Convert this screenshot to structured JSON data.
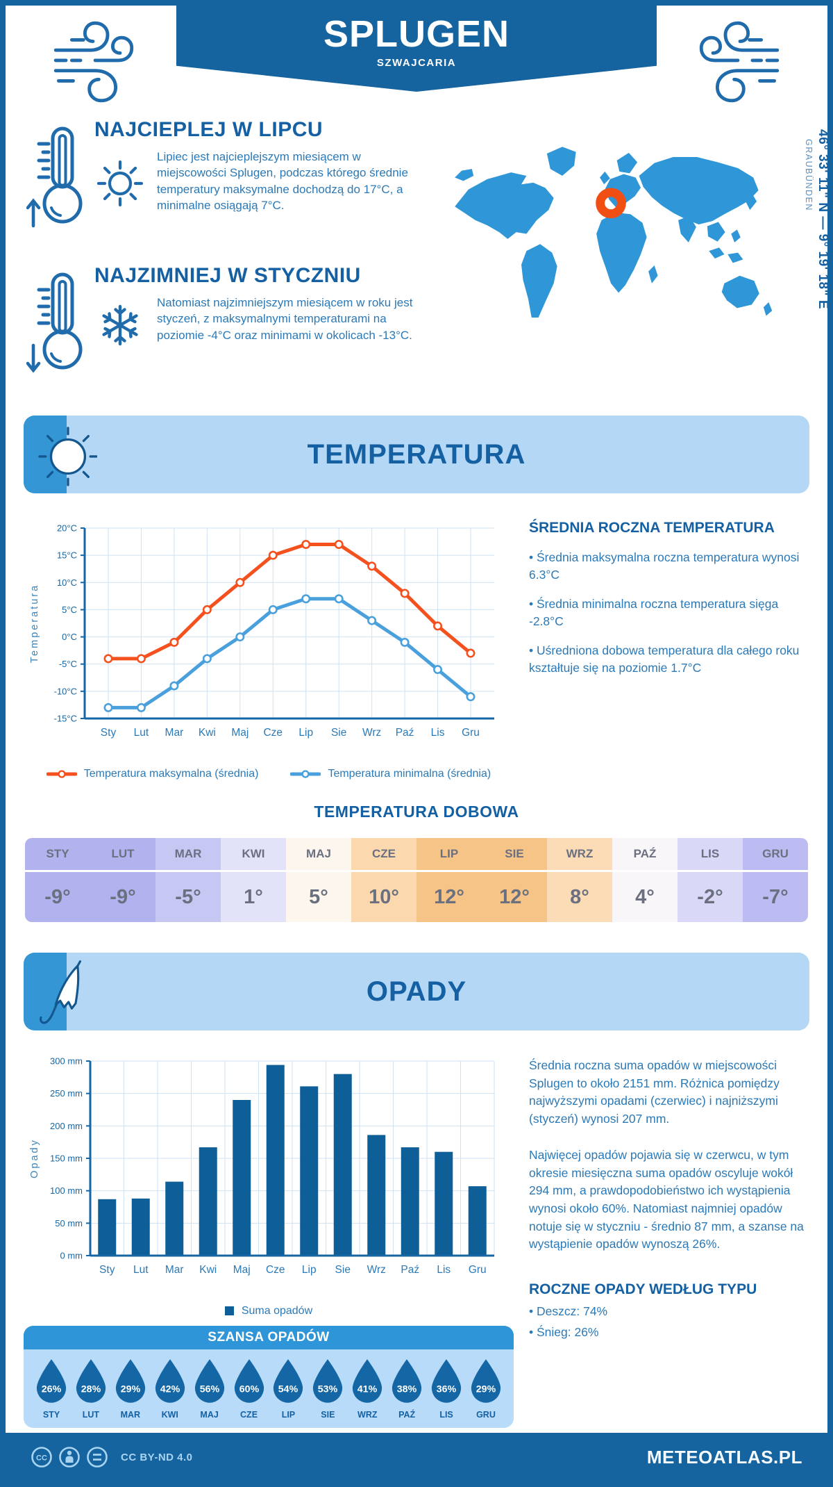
{
  "header": {
    "title": "SPLUGEN",
    "subtitle": "SZWAJCARIA"
  },
  "intro": {
    "warm": {
      "heading": "NAJCIEPLEJ W LIPCU",
      "text": "Lipiec jest najcieplejszym miesiącem w miejscowości Splugen, podczas którego średnie temperatury maksymalne dochodzą do 17°C, a minimalne osiągają 7°C."
    },
    "cold": {
      "heading": "NAJZIMNIEJ W STYCZNIU",
      "text": "Natomiast najzimniejszym miesiącem w roku jest styczeń, z maksymalnymi temperaturami na poziomie -4°C oraz minimami w okolicach -13°C."
    },
    "map": {
      "coordinates": "46° 33' 11\" N — 9° 19' 18\" E",
      "region": "GRAUBÜNDEN",
      "marker_color": "#f04e12",
      "map_color": "#2f96d8"
    }
  },
  "temperature_section": {
    "title": "TEMPERATURA",
    "summary": {
      "heading": "ŚREDNIA ROCZNA TEMPERATURA",
      "bullets": [
        "• Średnia maksymalna roczna temperatura wynosi 6.3°C",
        "• Średnia minimalna roczna temperatura sięga -2.8°C",
        "• Uśredniona dobowa temperatura dla całego roku kształtuje się na poziomie 1.7°C"
      ]
    },
    "daily": {
      "title": "TEMPERATURA DOBOWA",
      "months": [
        "STY",
        "LUT",
        "MAR",
        "KWI",
        "MAJ",
        "CZE",
        "LIP",
        "SIE",
        "WRZ",
        "PAŹ",
        "LIS",
        "GRU"
      ],
      "values": [
        "-9°",
        "-9°",
        "-5°",
        "1°",
        "5°",
        "10°",
        "12°",
        "12°",
        "8°",
        "4°",
        "-2°",
        "-7°"
      ],
      "cell_colors": [
        "#b2b2ef",
        "#b2b2ef",
        "#c7c7f3",
        "#e2e2f9",
        "#fdf6ee",
        "#fbd8ae",
        "#f7c488",
        "#f7c488",
        "#fbdcb7",
        "#f8f6f8",
        "#d9d9f7",
        "#bcbcf2"
      ]
    }
  },
  "precipitation_section": {
    "title": "OPADY",
    "paragraphs": [
      "Średnia roczna suma opadów w miejscowości Splugen to około 2151 mm. Różnica pomiędzy najwyższymi opadami (czerwiec) i najniższymi (styczeń) wynosi 207 mm.",
      "Najwięcej opadów pojawia się w czerwcu, w tym okresie miesięczna suma opadów oscyluje wokół 294 mm, a prawdopodobieństwo ich wystąpienia wynosi około 60%. Natomiast najmniej opadów notuje się w styczniu - średnio 87 mm, a szanse na wystąpienie opadów wynoszą 26%."
    ],
    "type_breakdown": {
      "heading": "ROCZNE OPADY WEDŁUG TYPU",
      "bullets": [
        "• Deszcz: 74%",
        "• Śnieg: 26%"
      ]
    },
    "chance": {
      "title": "SZANSA OPADÓW",
      "months": [
        "STY",
        "LUT",
        "MAR",
        "KWI",
        "MAJ",
        "CZE",
        "LIP",
        "SIE",
        "WRZ",
        "PAŹ",
        "LIS",
        "GRU"
      ],
      "values": [
        "26%",
        "28%",
        "29%",
        "42%",
        "56%",
        "60%",
        "54%",
        "53%",
        "41%",
        "38%",
        "36%",
        "29%"
      ],
      "drop_color": "#1566a4"
    }
  },
  "footer": {
    "license": "CC BY-ND 4.0",
    "brand": "METEOATLAS.PL"
  },
  "colors": {
    "dark_blue": "#15639f",
    "heading_blue": "#1460a3",
    "body_blue": "#2b79b6",
    "banner_bg": "#b4d7f5",
    "banner_wedge": "#3496d4",
    "grid": "#cfe2f2",
    "axis": "#1566a4"
  },
  "chart_data": [
    {
      "type": "line",
      "categories": [
        "Sty",
        "Lut",
        "Mar",
        "Kwi",
        "Maj",
        "Cze",
        "Lip",
        "Sie",
        "Wrz",
        "Paź",
        "Lis",
        "Gru"
      ],
      "series": [
        {
          "name": "Temperatura maksymalna (średnia)",
          "color": "#f4511e",
          "values": [
            -4,
            -4,
            -1,
            5,
            10,
            15,
            17,
            17,
            13,
            8,
            2,
            -3
          ]
        },
        {
          "name": "Temperatura minimalna (średnia)",
          "color": "#4aa0dc",
          "values": [
            -13,
            -13,
            -9,
            -4,
            0,
            5,
            7,
            7,
            3,
            -1,
            -6,
            -11
          ]
        }
      ],
      "ylabel": "Temperatura",
      "ylim": [
        -15,
        20
      ],
      "ystep": 5,
      "ytick_suffix": "°C",
      "grid": true,
      "legend_position": "bottom"
    },
    {
      "type": "bar",
      "categories": [
        "Sty",
        "Lut",
        "Mar",
        "Kwi",
        "Maj",
        "Cze",
        "Lip",
        "Sie",
        "Wrz",
        "Paź",
        "Lis",
        "Gru"
      ],
      "series": [
        {
          "name": "Suma opadów",
          "color": "#0e5e97",
          "values": [
            87,
            88,
            114,
            167,
            240,
            294,
            261,
            280,
            186,
            167,
            160,
            107
          ]
        }
      ],
      "ylabel": "Opady",
      "ylim": [
        0,
        300
      ],
      "ystep": 50,
      "ytick_suffix": " mm",
      "grid": true,
      "legend_position": "bottom"
    }
  ]
}
